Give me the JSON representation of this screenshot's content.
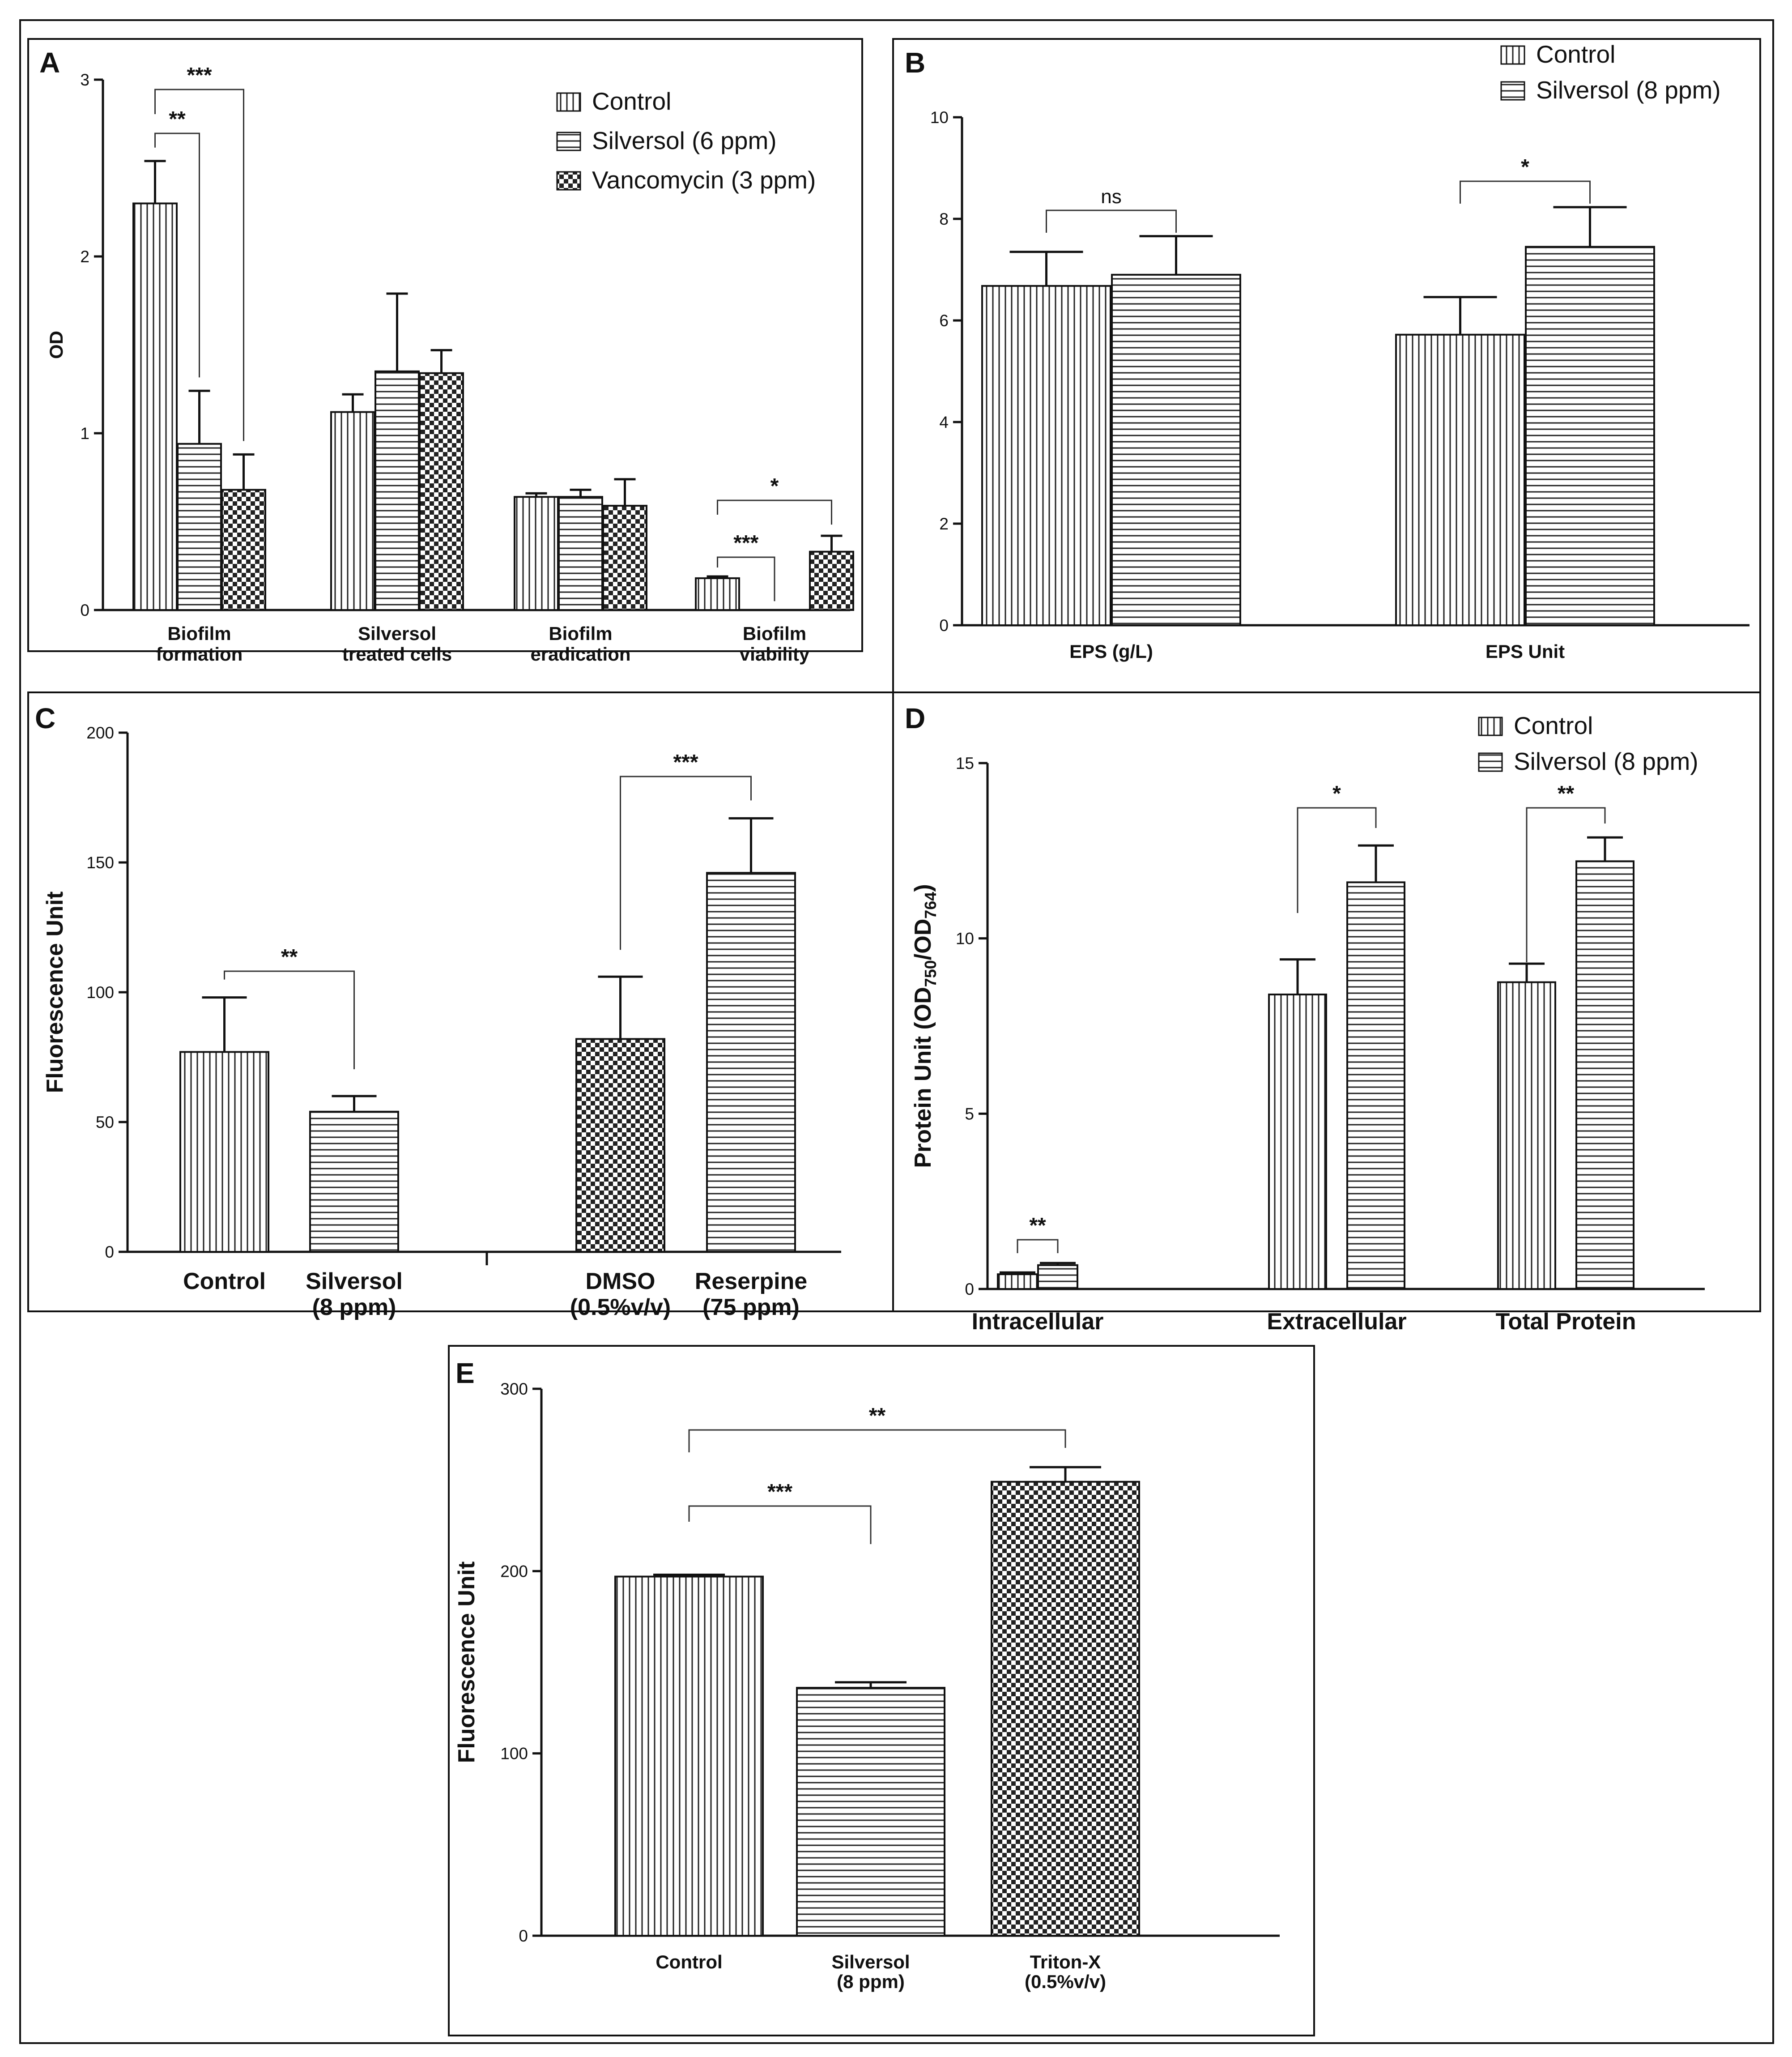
{
  "figure_label": "Multi-panel bar chart figure",
  "chart_data": [
    {
      "panel": "A",
      "type": "bar",
      "ylabel": "OD",
      "ylim": [
        0,
        3
      ],
      "yticks": [
        0,
        1,
        2,
        3
      ],
      "categories": [
        "Biofilm formation",
        "Silversol treated cells",
        "Biofilm eradication",
        "Biofilm viability"
      ],
      "category_lines": [
        [
          "Biofilm",
          "formation"
        ],
        [
          "Silversol",
          "treated cells"
        ],
        [
          "Biofilm",
          "eradication"
        ],
        [
          "Biofilm",
          "viability"
        ]
      ],
      "series": [
        {
          "name": "Control",
          "pattern": "vertical",
          "values": [
            2.3,
            1.12,
            0.64,
            0.18
          ],
          "errors": [
            0.24,
            0.1,
            0.02,
            0.01
          ]
        },
        {
          "name": "Silversol (6 ppm)",
          "pattern": "horizontal",
          "values": [
            0.94,
            1.35,
            0.64,
            0.0
          ],
          "errors": [
            0.3,
            0.44,
            0.04,
            0.0
          ]
        },
        {
          "name": "Vancomycin (3 ppm)",
          "pattern": "checker",
          "values": [
            0.68,
            1.34,
            0.59,
            0.33
          ],
          "errors": [
            0.2,
            0.13,
            0.15,
            0.09
          ]
        }
      ],
      "annotations": [
        {
          "label": "**",
          "category": 0,
          "from_series": 0,
          "to_series": 1
        },
        {
          "label": "***",
          "category": 0,
          "from_series": 0,
          "to_series": 2
        },
        {
          "label": "***",
          "category": 3,
          "from_series": 0,
          "to_series": 1
        },
        {
          "label": "*",
          "category": 3,
          "from_series": 0,
          "to_series": 2
        }
      ]
    },
    {
      "panel": "B",
      "type": "bar",
      "ylabel": "",
      "ylim": [
        0,
        10
      ],
      "yticks": [
        0,
        2,
        4,
        6,
        8,
        10
      ],
      "categories": [
        "EPS (g/L)",
        "EPS Unit"
      ],
      "series": [
        {
          "name": "Control",
          "pattern": "vertical",
          "values": [
            6.68,
            5.72
          ],
          "errors": [
            0.67,
            0.74
          ]
        },
        {
          "name": "Silversol (8 ppm)",
          "pattern": "horizontal",
          "values": [
            6.9,
            7.45
          ],
          "errors": [
            0.76,
            0.78
          ]
        }
      ],
      "annotations": [
        {
          "label": "ns",
          "category": 0
        },
        {
          "label": "*",
          "category": 1
        }
      ]
    },
    {
      "panel": "C",
      "type": "bar",
      "ylabel": "Fluorescence Unit",
      "ylim": [
        0,
        200
      ],
      "yticks": [
        0,
        50,
        100,
        150,
        200
      ],
      "categories": [
        "Control",
        "Silversol (8 ppm)",
        "DMSO (0.5%v/v)",
        "Reserpine (75 ppm)"
      ],
      "category_lines": [
        [
          "Control"
        ],
        [
          "Silversol",
          "(8 ppm)"
        ],
        [
          "DMSO",
          "(0.5%v/v)"
        ],
        [
          "Reserpine",
          "(75 ppm)"
        ]
      ],
      "patterns": [
        "vertical",
        "horizontal",
        "checker",
        "horizontal"
      ],
      "values": [
        77,
        54,
        82,
        146
      ],
      "errors": [
        21,
        6,
        24,
        21
      ],
      "annotations": [
        {
          "label": "**",
          "from": 0,
          "to": 1
        },
        {
          "label": "***",
          "from": 2,
          "to": 3
        }
      ]
    },
    {
      "panel": "D",
      "type": "bar",
      "ylabel_parts": [
        "Protein Unit (OD",
        "750",
        "/OD",
        "764",
        ")"
      ],
      "ylim": [
        0,
        15
      ],
      "yticks": [
        0,
        5,
        10,
        15
      ],
      "categories": [
        "Intracellular",
        "Extracellular",
        "Total Protein"
      ],
      "series": [
        {
          "name": "Control",
          "pattern": "vertical",
          "values": [
            0.42,
            8.4,
            8.75
          ],
          "errors": [
            0.05,
            1.0,
            0.53
          ]
        },
        {
          "name": "Silversol (8 ppm)",
          "pattern": "horizontal",
          "values": [
            0.68,
            11.6,
            12.2
          ],
          "errors": [
            0.06,
            1.05,
            0.68
          ]
        }
      ],
      "annotations": [
        {
          "label": "**",
          "category": 0
        },
        {
          "label": "*",
          "category": 1
        },
        {
          "label": "**",
          "category": 2
        }
      ]
    },
    {
      "panel": "E",
      "type": "bar",
      "ylabel": "Fluorescence Unit",
      "ylim": [
        0,
        300
      ],
      "yticks": [
        0,
        100,
        200,
        300
      ],
      "categories": [
        "Control",
        "Silversol (8 ppm)",
        "Triton-X (0.5%v/v)"
      ],
      "category_lines": [
        [
          "Control"
        ],
        [
          "Silversol",
          "(8 ppm)"
        ],
        [
          "Triton-X",
          "(0.5%v/v)"
        ]
      ],
      "patterns": [
        "vertical",
        "horizontal",
        "checker"
      ],
      "values": [
        197,
        136,
        249
      ],
      "errors": [
        1,
        3,
        8
      ],
      "annotations": [
        {
          "label": "***",
          "from": 0,
          "to": 1
        },
        {
          "label": "**",
          "from": 0,
          "to": 2
        }
      ]
    }
  ]
}
